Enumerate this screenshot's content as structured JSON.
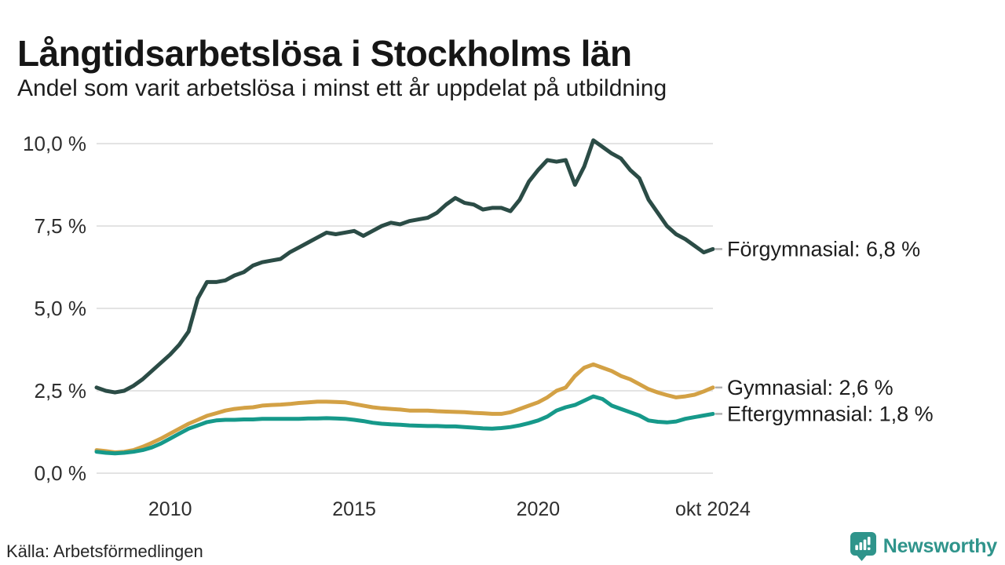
{
  "header": {
    "title": "Långtidsarbetslösa i Stockholms län",
    "subtitle": "Andel som varit arbetslösa i minst ett år uppdelat på utbildning"
  },
  "footer": {
    "source": "Källa: Arbetsförmedlingen"
  },
  "brand": {
    "name": "Newsworthy",
    "color": "#2f948b",
    "icon": "newsworthy-bar-chart-bubble-icon"
  },
  "chart_data": {
    "type": "line",
    "title": "Långtidsarbetslösa i Stockholms län",
    "subtitle": "Andel som varit arbetslösa i minst ett år uppdelat på utbildning",
    "x_unit": "decimal_year_quarterly_samples",
    "xlim": [
      2008,
      2024.75
    ],
    "ylim": [
      0,
      10.5
    ],
    "grid": "horizontal",
    "legend_position": "right-end-labels",
    "colors": {
      "grid": "#e3e3e3",
      "tick_text": "#2e2e2e",
      "label_text": "#1d1d1d",
      "leader": "#b0b0b0"
    },
    "yticks": [
      {
        "v": 0,
        "label": "0,0 %"
      },
      {
        "v": 2.5,
        "label": "2,5 %"
      },
      {
        "v": 5,
        "label": "5,0 %"
      },
      {
        "v": 7.5,
        "label": "7,5 %"
      },
      {
        "v": 10,
        "label": "10,0 %"
      }
    ],
    "xticks": [
      {
        "v": 2010,
        "label": "2010"
      },
      {
        "v": 2015,
        "label": "2015"
      },
      {
        "v": 2020,
        "label": "2020"
      },
      {
        "v": 2024.75,
        "label": "okt 2024"
      }
    ],
    "x": [
      2008,
      2008.25,
      2008.5,
      2008.75,
      2009,
      2009.25,
      2009.5,
      2009.75,
      2010,
      2010.25,
      2010.5,
      2010.75,
      2011,
      2011.25,
      2011.5,
      2011.75,
      2012,
      2012.25,
      2012.5,
      2012.75,
      2013,
      2013.25,
      2013.5,
      2013.75,
      2014,
      2014.25,
      2014.5,
      2014.75,
      2015,
      2015.25,
      2015.5,
      2015.75,
      2016,
      2016.25,
      2016.5,
      2016.75,
      2017,
      2017.25,
      2017.5,
      2017.75,
      2018,
      2018.25,
      2018.5,
      2018.75,
      2019,
      2019.25,
      2019.5,
      2019.75,
      2020,
      2020.25,
      2020.5,
      2020.75,
      2021,
      2021.25,
      2021.5,
      2021.75,
      2022,
      2022.25,
      2022.5,
      2022.75,
      2023,
      2023.25,
      2023.5,
      2023.75,
      2024,
      2024.25,
      2024.5,
      2024.75
    ],
    "series": [
      {
        "id": "forgymnasial",
        "name": "Förgymnasial",
        "end_label": "Förgymnasial: 6,8 %",
        "end_value": 6.8,
        "color": "#2b4c46",
        "values": [
          2.6,
          2.5,
          2.45,
          2.5,
          2.65,
          2.85,
          3.1,
          3.35,
          3.6,
          3.9,
          4.3,
          5.3,
          5.8,
          5.8,
          5.85,
          6.0,
          6.1,
          6.3,
          6.4,
          6.45,
          6.5,
          6.7,
          6.85,
          7.0,
          7.15,
          7.3,
          7.25,
          7.3,
          7.35,
          7.2,
          7.35,
          7.5,
          7.6,
          7.55,
          7.65,
          7.7,
          7.75,
          7.9,
          8.15,
          8.35,
          8.2,
          8.15,
          8.0,
          8.05,
          8.05,
          7.95,
          8.3,
          8.85,
          9.2,
          9.5,
          9.45,
          9.5,
          8.75,
          9.3,
          10.1,
          9.9,
          9.7,
          9.55,
          9.2,
          8.95,
          8.3,
          7.9,
          7.5,
          7.25,
          7.1,
          6.9,
          6.7,
          6.8
        ]
      },
      {
        "id": "gymnasial",
        "name": "Gymnasial",
        "end_label": "Gymnasial: 2,6 %",
        "end_value": 2.6,
        "color": "#d3a145",
        "values": [
          0.7,
          0.67,
          0.63,
          0.65,
          0.7,
          0.8,
          0.92,
          1.05,
          1.2,
          1.35,
          1.5,
          1.62,
          1.74,
          1.82,
          1.9,
          1.95,
          1.98,
          2.0,
          2.05,
          2.07,
          2.08,
          2.1,
          2.13,
          2.15,
          2.17,
          2.17,
          2.16,
          2.15,
          2.1,
          2.05,
          2.0,
          1.97,
          1.95,
          1.93,
          1.9,
          1.9,
          1.9,
          1.88,
          1.87,
          1.86,
          1.85,
          1.83,
          1.82,
          1.8,
          1.8,
          1.85,
          1.95,
          2.05,
          2.15,
          2.3,
          2.5,
          2.6,
          2.95,
          3.2,
          3.3,
          3.2,
          3.1,
          2.95,
          2.85,
          2.7,
          2.55,
          2.45,
          2.37,
          2.3,
          2.33,
          2.38,
          2.48,
          2.6
        ]
      },
      {
        "id": "eftergymnasial",
        "name": "Eftergymnasial",
        "end_label": "Eftergymnasial: 1,8 %",
        "end_value": 1.8,
        "color": "#16998a",
        "values": [
          0.65,
          0.62,
          0.6,
          0.62,
          0.65,
          0.7,
          0.78,
          0.9,
          1.05,
          1.2,
          1.35,
          1.45,
          1.55,
          1.6,
          1.62,
          1.62,
          1.63,
          1.63,
          1.65,
          1.65,
          1.65,
          1.65,
          1.65,
          1.66,
          1.66,
          1.67,
          1.66,
          1.65,
          1.62,
          1.58,
          1.53,
          1.5,
          1.48,
          1.47,
          1.45,
          1.44,
          1.43,
          1.43,
          1.42,
          1.42,
          1.4,
          1.38,
          1.36,
          1.35,
          1.37,
          1.4,
          1.45,
          1.52,
          1.6,
          1.72,
          1.9,
          2.0,
          2.07,
          2.2,
          2.33,
          2.25,
          2.05,
          1.95,
          1.85,
          1.75,
          1.6,
          1.56,
          1.54,
          1.57,
          1.65,
          1.7,
          1.75,
          1.8
        ]
      }
    ]
  }
}
